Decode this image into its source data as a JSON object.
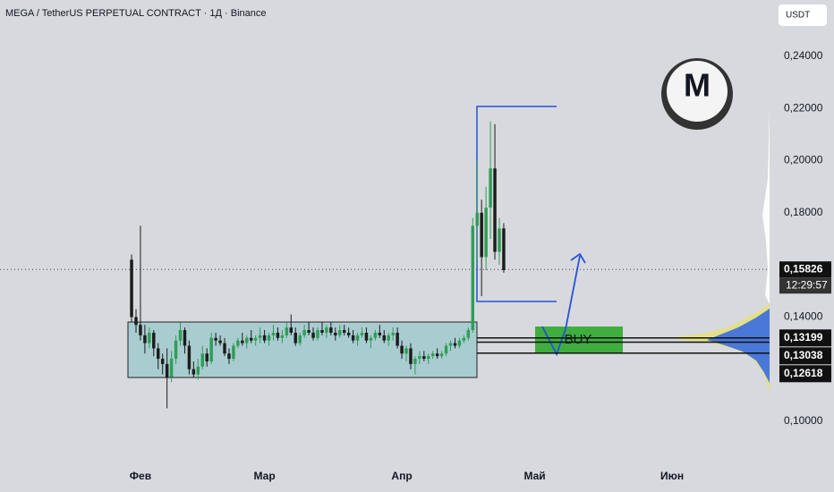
{
  "chart_data": {
    "type": "candlestick",
    "title": "MEGA / TetherUS PERPETUAL CONTRACT · 1Д · Binance",
    "currency_button": "USDT",
    "x": [
      0,
      1,
      2,
      3,
      4,
      5,
      6,
      7,
      8,
      9,
      10,
      11,
      12,
      13,
      14,
      15,
      16,
      17,
      18,
      19,
      20,
      21,
      22,
      23,
      24,
      25,
      26,
      27,
      28,
      29,
      30,
      31,
      32,
      33,
      34,
      35,
      36,
      37,
      38,
      39,
      40,
      41,
      42,
      43,
      44,
      45,
      46,
      47,
      48,
      49,
      50,
      51,
      52,
      53,
      54,
      55,
      56,
      57,
      58,
      59,
      60,
      61,
      62,
      63,
      64,
      65,
      66,
      67,
      68,
      69,
      70,
      71,
      72,
      73,
      74,
      75,
      76,
      77,
      78,
      79,
      80,
      81,
      82,
      83,
      84
    ],
    "open": [
      0.162,
      0.14,
      0.137,
      0.133,
      0.13,
      0.134,
      0.128,
      0.124,
      0.122,
      0.117,
      0.124,
      0.131,
      0.135,
      0.129,
      0.12,
      0.118,
      0.121,
      0.126,
      0.123,
      0.132,
      0.131,
      0.13,
      0.126,
      0.124,
      0.129,
      0.131,
      0.13,
      0.132,
      0.131,
      0.132,
      0.133,
      0.131,
      0.133,
      0.134,
      0.132,
      0.133,
      0.136,
      0.134,
      0.13,
      0.133,
      0.135,
      0.134,
      0.132,
      0.135,
      0.134,
      0.136,
      0.134,
      0.133,
      0.135,
      0.134,
      0.133,
      0.131,
      0.133,
      0.134,
      0.131,
      0.132,
      0.134,
      0.133,
      0.131,
      0.133,
      0.134,
      0.129,
      0.126,
      0.128,
      0.122,
      0.124,
      0.125,
      0.124,
      0.125,
      0.126,
      0.125,
      0.126,
      0.129,
      0.13,
      0.129,
      0.131,
      0.132,
      0.135,
      0.175,
      0.18,
      0.163,
      0.182,
      0.197,
      0.165,
      0.174
    ],
    "high": [
      0.164,
      0.143,
      0.175,
      0.137,
      0.136,
      0.135,
      0.13,
      0.126,
      0.128,
      0.127,
      0.133,
      0.138,
      0.136,
      0.131,
      0.123,
      0.124,
      0.129,
      0.128,
      0.134,
      0.134,
      0.133,
      0.132,
      0.128,
      0.13,
      0.132,
      0.134,
      0.133,
      0.135,
      0.133,
      0.136,
      0.135,
      0.134,
      0.137,
      0.136,
      0.135,
      0.138,
      0.141,
      0.136,
      0.134,
      0.137,
      0.138,
      0.136,
      0.136,
      0.138,
      0.137,
      0.138,
      0.136,
      0.137,
      0.137,
      0.136,
      0.135,
      0.134,
      0.136,
      0.136,
      0.133,
      0.135,
      0.137,
      0.135,
      0.134,
      0.136,
      0.136,
      0.131,
      0.129,
      0.13,
      0.125,
      0.127,
      0.127,
      0.126,
      0.127,
      0.128,
      0.127,
      0.13,
      0.131,
      0.132,
      0.132,
      0.133,
      0.136,
      0.178,
      0.2,
      0.185,
      0.19,
      0.215,
      0.214,
      0.178,
      0.176
    ],
    "low": [
      0.138,
      0.134,
      0.131,
      0.126,
      0.128,
      0.125,
      0.12,
      0.118,
      0.105,
      0.115,
      0.122,
      0.129,
      0.126,
      0.118,
      0.117,
      0.116,
      0.12,
      0.121,
      0.122,
      0.129,
      0.129,
      0.125,
      0.122,
      0.123,
      0.128,
      0.129,
      0.128,
      0.13,
      0.129,
      0.13,
      0.13,
      0.129,
      0.131,
      0.131,
      0.13,
      0.132,
      0.133,
      0.129,
      0.129,
      0.132,
      0.133,
      0.131,
      0.131,
      0.133,
      0.132,
      0.133,
      0.131,
      0.132,
      0.133,
      0.132,
      0.13,
      0.129,
      0.132,
      0.13,
      0.128,
      0.131,
      0.132,
      0.13,
      0.129,
      0.131,
      0.128,
      0.124,
      0.123,
      0.12,
      0.118,
      0.122,
      0.123,
      0.122,
      0.124,
      0.124,
      0.124,
      0.125,
      0.127,
      0.128,
      0.128,
      0.13,
      0.131,
      0.134,
      0.16,
      0.148,
      0.158,
      0.17,
      0.162,
      0.16,
      0.157
    ],
    "close": [
      0.14,
      0.137,
      0.133,
      0.13,
      0.134,
      0.128,
      0.124,
      0.122,
      0.117,
      0.124,
      0.131,
      0.135,
      0.129,
      0.12,
      0.118,
      0.121,
      0.126,
      0.123,
      0.132,
      0.131,
      0.13,
      0.126,
      0.124,
      0.129,
      0.131,
      0.13,
      0.132,
      0.131,
      0.132,
      0.133,
      0.131,
      0.133,
      0.134,
      0.132,
      0.133,
      0.136,
      0.134,
      0.13,
      0.133,
      0.135,
      0.134,
      0.132,
      0.135,
      0.134,
      0.136,
      0.134,
      0.133,
      0.135,
      0.134,
      0.133,
      0.131,
      0.133,
      0.134,
      0.131,
      0.132,
      0.134,
      0.133,
      0.131,
      0.133,
      0.134,
      0.129,
      0.126,
      0.128,
      0.122,
      0.124,
      0.125,
      0.124,
      0.125,
      0.126,
      0.125,
      0.126,
      0.129,
      0.13,
      0.129,
      0.131,
      0.132,
      0.135,
      0.175,
      0.18,
      0.163,
      0.182,
      0.197,
      0.165,
      0.174,
      0.158
    ],
    "up_color": "#2f9e57",
    "down_color": "#1c1c1c",
    "xlim": [
      -29.7,
      144
    ],
    "xticks": [
      {
        "value": 2,
        "label": "Фев"
      },
      {
        "value": 30,
        "label": "Мар"
      },
      {
        "value": 61,
        "label": "Апр"
      },
      {
        "value": 91,
        "label": "Май"
      },
      {
        "value": 122,
        "label": "Июн"
      }
    ],
    "ylim": [
      0.0832,
      0.2616
    ],
    "yticks": [
      {
        "value": 0.24,
        "label": "0,24000"
      },
      {
        "value": 0.22,
        "label": "0,22000"
      },
      {
        "value": 0.2,
        "label": "0,20000"
      },
      {
        "value": 0.18,
        "label": "0,18000"
      },
      {
        "value": 0.14,
        "label": "0,14000"
      },
      {
        "value": 0.1,
        "label": "0,10000"
      }
    ],
    "last_price": {
      "value": 0.15826,
      "label": "0,15826",
      "timer": "12:29:57"
    },
    "levels": [
      {
        "value": 0.13199,
        "label": "0,13199"
      },
      {
        "value": 0.13038,
        "label": "0,13038"
      },
      {
        "value": 0.12618,
        "label": "0,12618"
      }
    ],
    "annotation": "BUY"
  }
}
